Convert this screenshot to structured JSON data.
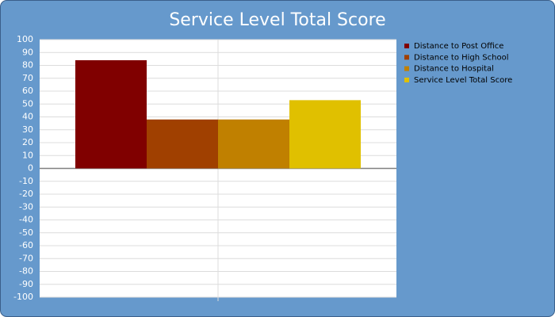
{
  "chart_data": {
    "type": "bar",
    "title": "Service Level Total Score",
    "categories": [
      null
    ],
    "series": [
      {
        "name": "Distance to Post Office",
        "color": "#800000",
        "values": [
          84
        ]
      },
      {
        "name": "Distance to High School",
        "color": "#a04000",
        "values": [
          38
        ]
      },
      {
        "name": "Distance to Hospital",
        "color": "#c08000",
        "values": [
          38
        ]
      },
      {
        "name": "Service Level Total Score",
        "color": "#e0c000",
        "values": [
          53
        ]
      }
    ],
    "ylim": [
      -100,
      100
    ],
    "yticks": [
      -100,
      -90,
      -80,
      -70,
      -60,
      -50,
      -40,
      -30,
      -20,
      -10,
      0,
      10,
      20,
      30,
      40,
      50,
      60,
      70,
      80,
      90,
      100
    ],
    "grid": true,
    "legend": "right"
  }
}
